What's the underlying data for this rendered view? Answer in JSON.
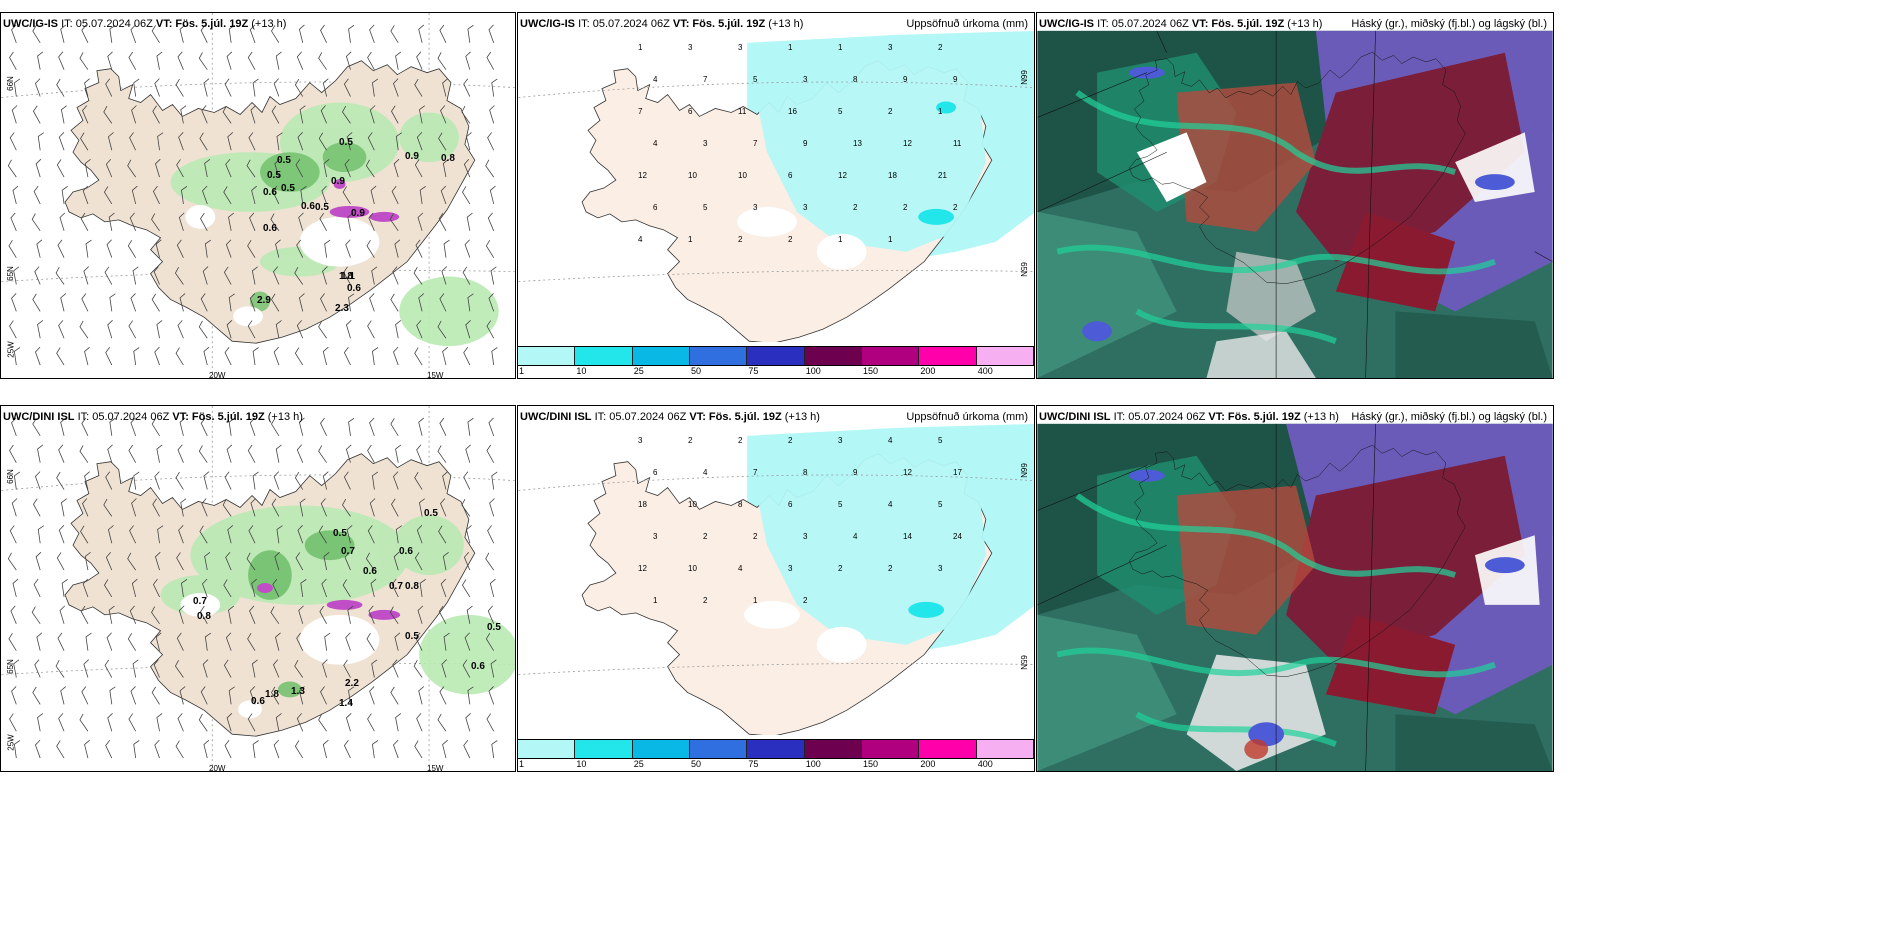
{
  "panels": [
    {
      "id": "top-wind",
      "model": "UWC/IG-IS",
      "it": "IT: 05.07.2024 06Z",
      "vt_label": "VT:",
      "vt": "Fös. 5.júl. 19Z",
      "lead": "(+13 h)",
      "right_title": "",
      "lat_labels": [
        "66N",
        "65N"
      ],
      "lon_labels": [
        "25W",
        "20W",
        "15W"
      ]
    },
    {
      "id": "top-precip",
      "model": "UWC/IG-IS",
      "it": "IT: 05.07.2024 06Z",
      "vt_label": "VT:",
      "vt": "Fös. 5.júl. 19Z",
      "lead": "(+13 h)",
      "right_title": "Uppsöfnuð úrkoma (mm)",
      "lat_labels": [
        "66N",
        "65N"
      ]
    },
    {
      "id": "top-cloud",
      "model": "UWC/IG-IS",
      "it": "IT: 05.07.2024 06Z",
      "vt_label": "VT:",
      "vt": "Fös. 5.júl. 19Z",
      "lead": "(+13 h)",
      "right_title": "Háský (gr.), miðský (fj.bl.) og lágský (bl.)"
    },
    {
      "id": "bottom-wind",
      "model": "UWC/DINI ISL",
      "it": "IT: 05.07.2024 06Z",
      "vt_label": "VT:",
      "vt": "Fös. 5.júl. 19Z",
      "lead": "(+13 h)",
      "right_title": "",
      "lat_labels": [
        "66N",
        "65N"
      ],
      "lon_labels": [
        "25W",
        "20W",
        "15W"
      ]
    },
    {
      "id": "bottom-precip",
      "model": "UWC/DINI ISL",
      "it": "IT: 05.07.2024 06Z",
      "vt_label": "VT:",
      "vt": "Fös. 5.júl. 19Z",
      "lead": "(+13 h)",
      "right_title": "Uppsöfnuð úrkoma (mm)",
      "lat_labels": [
        "66N",
        "65N"
      ]
    },
    {
      "id": "bottom-cloud",
      "model": "UWC/DINI ISL",
      "it": "IT: 05.07.2024 06Z",
      "vt_label": "VT:",
      "vt": "Fös. 5.júl. 19Z",
      "lead": "(+13 h)",
      "right_title": "Háský (gr.), miðský (fj.bl.) og lágský (bl.)"
    }
  ],
  "colorbar": {
    "colors": [
      "#b3f7f7",
      "#22e6ea",
      "#0ab8e6",
      "#2f6fe0",
      "#2b2fbf",
      "#6e0050",
      "#b0007f",
      "#ff00aa",
      "#f6b0f2"
    ],
    "ticks": [
      "1",
      "10",
      "25",
      "50",
      "75",
      "100",
      "150",
      "200",
      "400"
    ]
  },
  "top_wind_values": [
    "0.5",
    "0.5",
    "0.5",
    "0.5",
    "0.6",
    "0.9",
    "0.9",
    "0.8",
    "0.6",
    "0.5",
    "0.6",
    "0.9",
    "1.1",
    "2.9",
    "0.6",
    "1.8",
    "2.3"
  ],
  "bottom_wind_values": [
    "0.5",
    "0.7",
    "0.6",
    "0.6",
    "0.7",
    "0.8",
    "0.5",
    "0.8",
    "0.7",
    "0.5",
    "0.5",
    "0.6",
    "1.8",
    "1.3",
    "2.2",
    "1.4",
    "0.6"
  ],
  "top_precip_values": [
    "1",
    "3",
    "3",
    "1",
    "1",
    "3",
    "2",
    "4",
    "7",
    "5",
    "3",
    "8",
    "9",
    "9",
    "7",
    "6",
    "11",
    "16",
    "5",
    "2",
    "1",
    "4",
    "3",
    "7",
    "9",
    "13",
    "12",
    "11",
    "12",
    "10",
    "10",
    "6",
    "12",
    "18",
    "21",
    "6",
    "5",
    "3",
    "3",
    "2",
    "2",
    "2",
    "4",
    "1",
    "2",
    "2",
    "1",
    "1"
  ],
  "bottom_precip_values": [
    "3",
    "2",
    "2",
    "2",
    "3",
    "4",
    "5",
    "6",
    "4",
    "7",
    "8",
    "9",
    "12",
    "17",
    "18",
    "10",
    "8",
    "6",
    "5",
    "4",
    "5",
    "3",
    "2",
    "2",
    "3",
    "4",
    "14",
    "24",
    "12",
    "10",
    "4",
    "3",
    "2",
    "2",
    "3",
    "1",
    "2",
    "1",
    "2"
  ]
}
